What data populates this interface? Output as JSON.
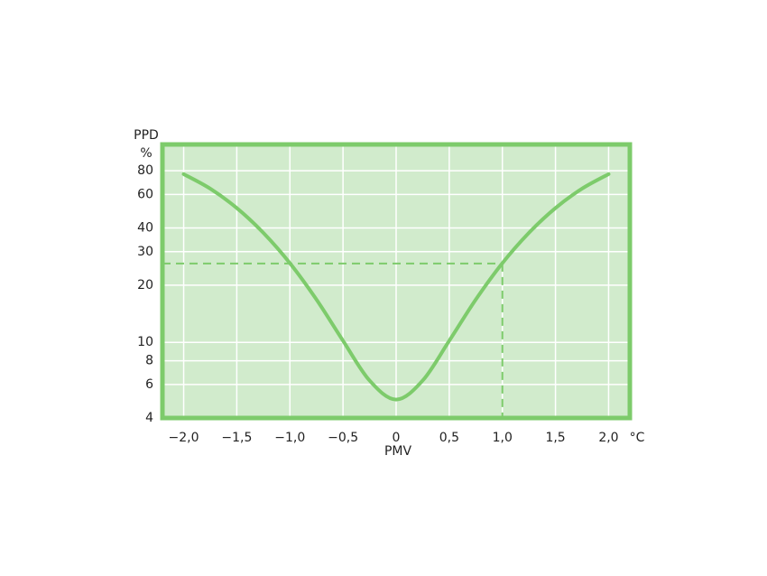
{
  "chart_data": {
    "type": "line",
    "y_label": "PPD",
    "y_unit": "%",
    "x_label": "PMV",
    "x_unit": "°C",
    "log_scale": true,
    "grid": true,
    "color": "#7dcb6b",
    "background": "#d1ebcc",
    "x": [
      -2,
      -1.75,
      -1.5,
      -1.25,
      -1,
      -0.75,
      -0.5,
      -0.25,
      0,
      0.25,
      0.5,
      0.75,
      1,
      1.25,
      1.5,
      1.75,
      2
    ],
    "values": [
      76.8,
      64.4,
      50.9,
      37.7,
      26.1,
      16.8,
      10.2,
      6.3,
      5,
      6.3,
      10.2,
      16.8,
      26.1,
      37.7,
      50.9,
      64.4,
      76.8
    ],
    "guide": {
      "x": 1,
      "y": 26
    },
    "xlim": [
      -2.2,
      2.2
    ],
    "ylim": [
      4,
      110
    ],
    "xticks": [
      {
        "value": -2,
        "label": "−2,0"
      },
      {
        "value": -1.5,
        "label": "−1,5"
      },
      {
        "value": -1,
        "label": "−1,0"
      },
      {
        "value": -0.5,
        "label": "−0,5"
      },
      0,
      {
        "value": 0.5,
        "label": "0,5"
      },
      {
        "value": 1,
        "label": "1,0"
      },
      {
        "value": 1.5,
        "label": "1,5"
      },
      {
        "value": 2,
        "label": "2,0"
      }
    ],
    "yticks": [
      4,
      6,
      8,
      10,
      20,
      30,
      40,
      60,
      80
    ]
  }
}
